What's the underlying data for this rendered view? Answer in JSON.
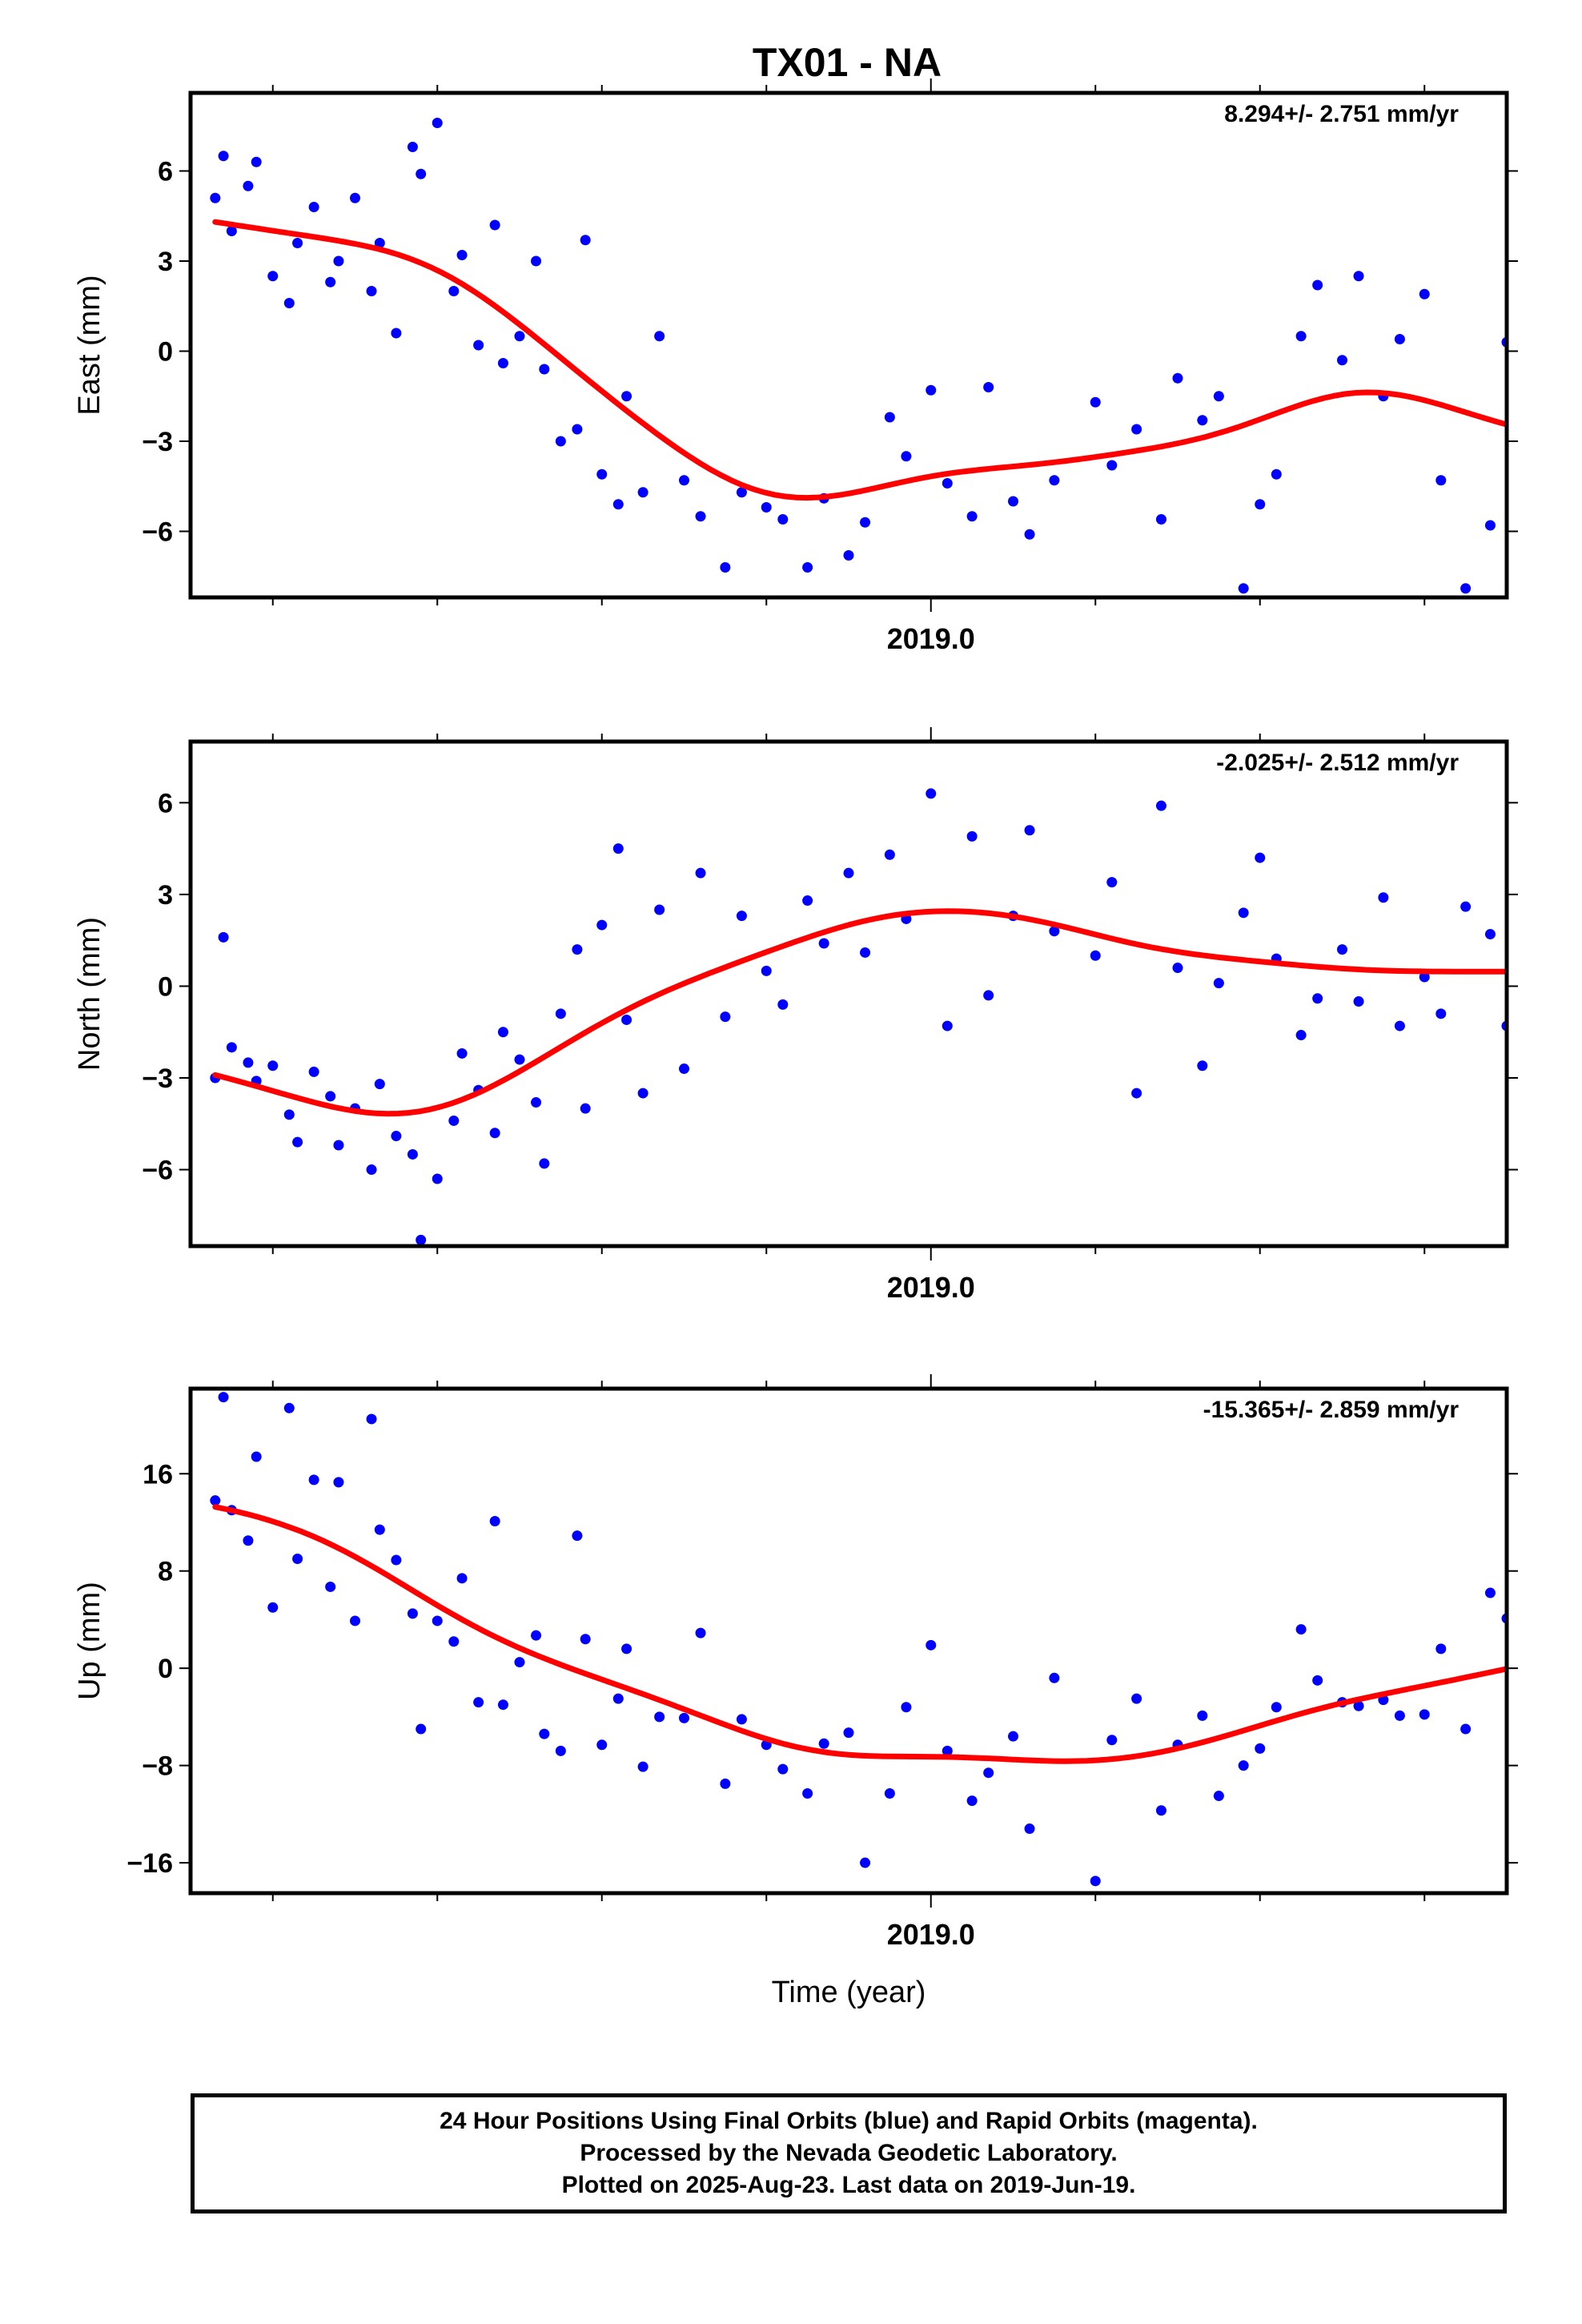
{
  "title": "TX01 - NA",
  "colors": {
    "points": "#0000ff",
    "fit": "#ff0000",
    "frame": "#000000"
  },
  "footer": {
    "line1": "24 Hour Positions Using Final Orbits (blue) and Rapid Orbits (magenta).",
    "line2": "Processed by the Nevada Geodetic Laboratory.",
    "line3": "Plotted on 2025-Aug-23. Last data on 2019-Jun-19."
  },
  "chart_data": [
    {
      "type": "scatter",
      "ylabel": "East (mm)",
      "xlabel": "",
      "x_tick_label": "2019.0",
      "rate_label": "8.294+/- 2.751 mm/yr",
      "xlim": [
        2018.1,
        2019.7
      ],
      "ylim": [
        -8.2,
        8.6
      ],
      "yticks": [
        6,
        3,
        0,
        -3,
        -6
      ],
      "ytick_labels": [
        "6",
        "3",
        "0",
        "−3",
        "−6"
      ],
      "series": [
        {
          "marker": "points",
          "color": "#0000ff",
          "x": [
            2018.13,
            2018.14,
            2018.15,
            2018.17,
            2018.18,
            2018.2,
            2018.22,
            2018.23,
            2018.25,
            2018.27,
            2018.28,
            2018.3,
            2018.32,
            2018.33,
            2018.35,
            2018.37,
            2018.38,
            2018.4,
            2018.42,
            2018.43,
            2018.45,
            2018.47,
            2018.48,
            2018.5,
            2018.52,
            2018.53,
            2018.55,
            2018.57,
            2018.58,
            2018.6,
            2018.62,
            2018.63,
            2018.65,
            2018.67,
            2018.7,
            2018.72,
            2018.75,
            2018.77,
            2018.8,
            2018.82,
            2018.85,
            2018.87,
            2018.9,
            2018.92,
            2018.95,
            2018.97,
            2019.0,
            2019.02,
            2019.05,
            2019.07,
            2019.1,
            2019.12,
            2019.15,
            2019.2,
            2019.22,
            2019.25,
            2019.28,
            2019.3,
            2019.33,
            2019.35,
            2019.38,
            2019.4,
            2019.42,
            2019.45,
            2019.47,
            2019.5,
            2019.52,
            2019.55,
            2019.57,
            2019.6,
            2019.62,
            2019.65,
            2019.68,
            2019.7
          ],
          "y": [
            5.1,
            6.5,
            4.0,
            5.5,
            6.3,
            2.5,
            1.6,
            3.6,
            4.8,
            2.3,
            3.0,
            5.1,
            2.0,
            3.6,
            0.6,
            6.8,
            5.9,
            7.6,
            2.0,
            3.2,
            0.2,
            4.2,
            -0.4,
            0.5,
            3.0,
            -0.6,
            -3.0,
            -2.6,
            3.7,
            -4.1,
            -5.1,
            -1.5,
            -4.7,
            0.5,
            -4.3,
            -5.5,
            -7.2,
            -4.7,
            -5.2,
            -5.6,
            -7.2,
            -4.9,
            -6.8,
            -5.7,
            -2.2,
            -3.5,
            -1.3,
            -4.4,
            -5.5,
            -1.2,
            -5.0,
            -6.1,
            -4.3,
            -1.7,
            -3.8,
            -2.6,
            -5.6,
            -0.9,
            -2.3,
            -1.5,
            -7.9,
            -5.1,
            -4.1,
            0.5,
            2.2,
            -0.3,
            2.5,
            -1.5,
            0.4,
            1.9,
            -4.3,
            -7.9,
            -5.8,
            0.3
          ]
        }
      ]
    },
    {
      "type": "scatter",
      "ylabel": "North (mm)",
      "xlabel": "",
      "x_tick_label": "2019.0",
      "rate_label": "-2.025+/- 2.512 mm/yr",
      "xlim": [
        2018.1,
        2019.7
      ],
      "ylim": [
        -8.5,
        8.0
      ],
      "yticks": [
        6,
        3,
        0,
        -3,
        -6
      ],
      "ytick_labels": [
        "6",
        "3",
        "0",
        "−3",
        "−6"
      ],
      "series": [
        {
          "marker": "points",
          "color": "#0000ff",
          "x": [
            2018.13,
            2018.14,
            2018.15,
            2018.17,
            2018.18,
            2018.2,
            2018.22,
            2018.23,
            2018.25,
            2018.27,
            2018.28,
            2018.3,
            2018.32,
            2018.33,
            2018.35,
            2018.37,
            2018.38,
            2018.4,
            2018.42,
            2018.43,
            2018.45,
            2018.47,
            2018.48,
            2018.5,
            2018.52,
            2018.53,
            2018.55,
            2018.57,
            2018.58,
            2018.6,
            2018.62,
            2018.63,
            2018.65,
            2018.67,
            2018.7,
            2018.72,
            2018.75,
            2018.77,
            2018.8,
            2018.82,
            2018.85,
            2018.87,
            2018.9,
            2018.92,
            2018.95,
            2018.97,
            2019.0,
            2019.02,
            2019.05,
            2019.07,
            2019.1,
            2019.12,
            2019.15,
            2019.2,
            2019.22,
            2019.25,
            2019.28,
            2019.3,
            2019.33,
            2019.35,
            2019.38,
            2019.4,
            2019.42,
            2019.45,
            2019.47,
            2019.5,
            2019.52,
            2019.55,
            2019.57,
            2019.6,
            2019.62,
            2019.65,
            2019.68,
            2019.7
          ],
          "y": [
            -3.0,
            1.6,
            -2.0,
            -2.5,
            -3.1,
            -2.6,
            -4.2,
            -5.1,
            -2.8,
            -3.6,
            -5.2,
            -4.0,
            -6.0,
            -3.2,
            -4.9,
            -5.5,
            -8.3,
            -6.3,
            -4.4,
            -2.2,
            -3.4,
            -4.8,
            -1.5,
            -2.4,
            -3.8,
            -5.8,
            -0.9,
            1.2,
            -4.0,
            2.0,
            4.5,
            -1.1,
            -3.5,
            2.5,
            -2.7,
            3.7,
            -1.0,
            2.3,
            0.5,
            -0.6,
            2.8,
            1.4,
            3.7,
            1.1,
            4.3,
            2.2,
            6.3,
            -1.3,
            4.9,
            -0.3,
            2.3,
            5.1,
            1.8,
            1.0,
            3.4,
            -3.5,
            5.9,
            0.6,
            -2.6,
            0.1,
            2.4,
            4.2,
            0.9,
            -1.6,
            -0.4,
            1.2,
            -0.5,
            2.9,
            -1.3,
            0.3,
            -0.9,
            2.6,
            1.7,
            -1.3
          ]
        }
      ]
    },
    {
      "type": "scatter",
      "ylabel": "Up (mm)",
      "xlabel": "Time (year)",
      "x_tick_label": "2019.0",
      "rate_label": "-15.365+/- 2.859 mm/yr",
      "xlim": [
        2018.1,
        2019.7
      ],
      "ylim": [
        -18.5,
        23.0
      ],
      "yticks": [
        16,
        8,
        0,
        -8,
        -16
      ],
      "ytick_labels": [
        "16",
        "8",
        "0",
        "−8",
        "−16"
      ],
      "series": [
        {
          "marker": "points",
          "color": "#0000ff",
          "x": [
            2018.13,
            2018.14,
            2018.15,
            2018.17,
            2018.18,
            2018.2,
            2018.22,
            2018.23,
            2018.25,
            2018.27,
            2018.28,
            2018.3,
            2018.32,
            2018.33,
            2018.35,
            2018.37,
            2018.38,
            2018.4,
            2018.42,
            2018.43,
            2018.45,
            2018.47,
            2018.48,
            2018.5,
            2018.52,
            2018.53,
            2018.55,
            2018.57,
            2018.58,
            2018.6,
            2018.62,
            2018.63,
            2018.65,
            2018.67,
            2018.7,
            2018.72,
            2018.75,
            2018.77,
            2018.8,
            2018.82,
            2018.85,
            2018.87,
            2018.9,
            2018.92,
            2018.95,
            2018.97,
            2019.0,
            2019.02,
            2019.05,
            2019.07,
            2019.1,
            2019.12,
            2019.15,
            2019.2,
            2019.22,
            2019.25,
            2019.28,
            2019.3,
            2019.33,
            2019.35,
            2019.38,
            2019.4,
            2019.42,
            2019.45,
            2019.47,
            2019.5,
            2019.52,
            2019.55,
            2019.57,
            2019.6,
            2019.62,
            2019.65,
            2019.68,
            2019.7
          ],
          "y": [
            13.8,
            22.3,
            13.0,
            10.5,
            17.4,
            5.0,
            21.4,
            9.0,
            15.5,
            6.7,
            15.3,
            3.9,
            20.5,
            11.4,
            8.9,
            4.5,
            -5.0,
            3.9,
            2.2,
            7.4,
            -2.8,
            12.1,
            -3.0,
            0.5,
            2.7,
            -5.4,
            -6.8,
            10.9,
            2.4,
            -6.3,
            -2.5,
            1.6,
            -8.1,
            -4.0,
            -4.1,
            2.9,
            -9.5,
            -4.2,
            -6.3,
            -8.3,
            -10.3,
            -6.2,
            -5.3,
            -16.0,
            -10.3,
            -3.2,
            1.9,
            -6.8,
            -10.9,
            -8.6,
            -5.6,
            -13.2,
            -0.8,
            -17.5,
            -5.9,
            -2.5,
            -11.7,
            -6.3,
            -3.9,
            -10.5,
            -8.0,
            -6.6,
            -3.2,
            3.2,
            -1.0,
            -2.8,
            -3.1,
            -2.6,
            -3.9,
            -3.8,
            1.6,
            -5.0,
            6.2,
            4.1
          ]
        }
      ]
    }
  ]
}
